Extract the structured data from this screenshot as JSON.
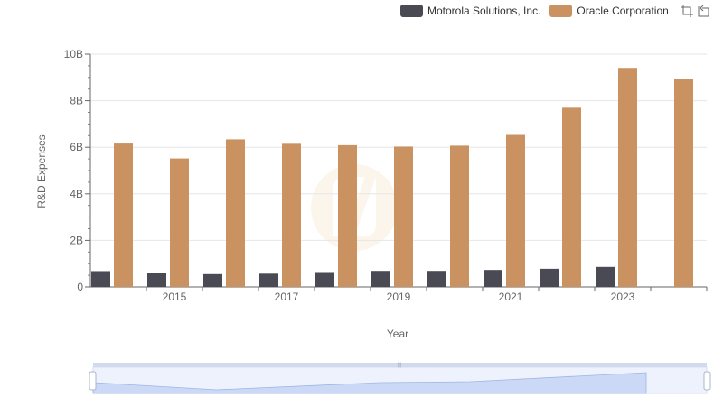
{
  "legend": [
    {
      "name": "Motorola Solutions, Inc.",
      "color": "#4a4a55"
    },
    {
      "name": "Oracle Corporation",
      "color": "#c99260"
    }
  ],
  "toolbox": {
    "zoom_icon": "zoom-icon",
    "reset_icon": "restore-icon"
  },
  "chart_data": {
    "type": "bar",
    "categories": [
      "2014",
      "2015",
      "2016",
      "2017",
      "2018",
      "2019",
      "2020",
      "2021",
      "2022",
      "2023",
      "2024"
    ],
    "tick_labels": [
      "2015",
      "2017",
      "2019",
      "2021",
      "2023"
    ],
    "xlabel": "Year",
    "ylabel": "R&D Expenses",
    "ylim": [
      0,
      10000000000
    ],
    "yticks": [
      {
        "value": 0,
        "label": "0"
      },
      {
        "value": 2000000000,
        "label": "2B"
      },
      {
        "value": 4000000000,
        "label": "4B"
      },
      {
        "value": 6000000000,
        "label": "6B"
      },
      {
        "value": 8000000000,
        "label": "8B"
      },
      {
        "value": 10000000000,
        "label": "10B"
      }
    ],
    "grid": true,
    "legend_position": "top-right",
    "series": [
      {
        "name": "Motorola Solutions, Inc.",
        "color": "#4a4a55",
        "values": [
          680000000,
          620000000,
          550000000,
          570000000,
          640000000,
          690000000,
          690000000,
          730000000,
          780000000,
          860000000,
          null
        ]
      },
      {
        "name": "Oracle Corporation",
        "color": "#c99260",
        "values": [
          6160000000,
          5520000000,
          6340000000,
          6150000000,
          6090000000,
          6030000000,
          6070000000,
          6530000000,
          7700000000,
          9410000000,
          8920000000
        ]
      }
    ]
  }
}
